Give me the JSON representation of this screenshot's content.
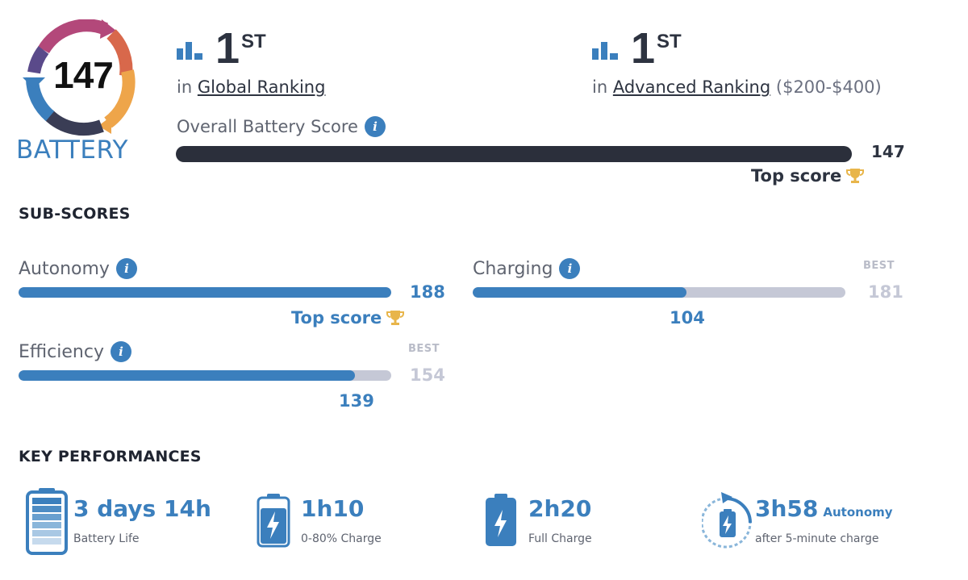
{
  "badge": {
    "score": "147",
    "label": "BATTERY"
  },
  "global_ranking": {
    "rank": "1",
    "suffix": "ST",
    "prefix": "in",
    "link": "Global Ranking"
  },
  "advanced_ranking": {
    "rank": "1",
    "suffix": "ST",
    "prefix": "in",
    "link": "Advanced Ranking",
    "range": "($200-$400)"
  },
  "overall": {
    "label": "Overall Battery Score",
    "value": "147",
    "top_score_label": "Top score"
  },
  "sub_scores": {
    "title": "SUB-SCORES",
    "autonomy": {
      "label": "Autonomy",
      "score": "188",
      "fill_fraction": 1.0,
      "top_score_label": "Top score"
    },
    "charging": {
      "label": "Charging",
      "score": "104",
      "best": "181",
      "best_label": "BEST",
      "fill_fraction": 0.574
    },
    "efficiency": {
      "label": "Efficiency",
      "score": "139",
      "best": "154",
      "best_label": "BEST",
      "fill_fraction": 0.902
    }
  },
  "key_performances": {
    "title": "KEY PERFORMANCES",
    "items": [
      {
        "value": "3 days 14h",
        "label": "Battery Life"
      },
      {
        "value": "1h10",
        "label": "0-80% Charge"
      },
      {
        "value": "2h20",
        "label": "Full Charge"
      },
      {
        "value": "3h58",
        "extra": "Autonomy",
        "label": "after 5-minute charge"
      }
    ]
  },
  "colors": {
    "accent": "#3b7fbd",
    "dark": "#2b2f3b",
    "track": "#c5c8d6",
    "trophy": "#e8b54a"
  }
}
